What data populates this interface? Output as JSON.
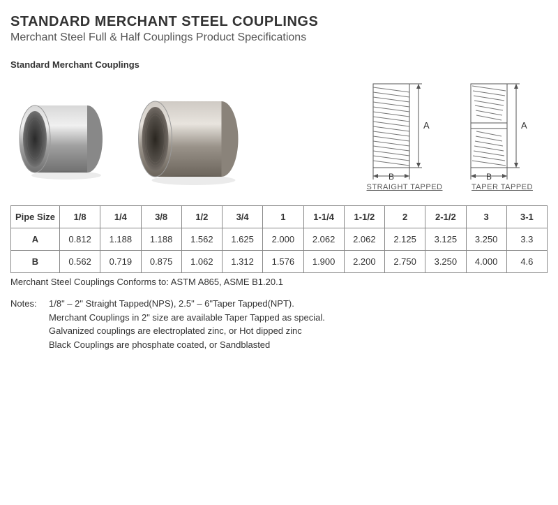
{
  "title": "STANDARD MERCHANT STEEL COUPLINGS",
  "subtitle": "Merchant Steel Full & Half Couplings Product Specifications",
  "section_label": "Standard Merchant Couplings",
  "diagram": {
    "straight_caption": "STRAIGHT TAPPED",
    "taper_caption": "TAPER TAPPED",
    "dim_a": "A",
    "dim_b": "B"
  },
  "table": {
    "header_col": "Pipe Size",
    "sizes": [
      "1/8",
      "1/4",
      "3/8",
      "1/2",
      "3/4",
      "1",
      "1-1/4",
      "1-1/2",
      "2",
      "2-1/2",
      "3",
      "3-1"
    ],
    "rows": [
      {
        "label": "A",
        "values": [
          "0.812",
          "1.188",
          "1.188",
          "1.562",
          "1.625",
          "2.000",
          "2.062",
          "2.062",
          "2.125",
          "3.125",
          "3.250",
          "3.3"
        ]
      },
      {
        "label": "B",
        "values": [
          "0.562",
          "0.719",
          "0.875",
          "1.062",
          "1.312",
          "1.576",
          "1.900",
          "2.200",
          "2.750",
          "3.250",
          "4.000",
          "4.6"
        ]
      }
    ]
  },
  "conforms": "Merchant Steel Couplings Conforms to: ASTM A865, ASME B1.20.1",
  "notes": {
    "label": "Notes:",
    "lines": [
      "1/8\" – 2\" Straight Tapped(NPS), 2.5\" – 6\"Taper Tapped(NPT).",
      "Merchant Couplings in 2\" size are available Taper Tapped as special.",
      "Galvanized couplings are electroplated zinc, or Hot dipped zinc",
      "Black Couplings are phosphate coated, or Sandblasted"
    ]
  }
}
